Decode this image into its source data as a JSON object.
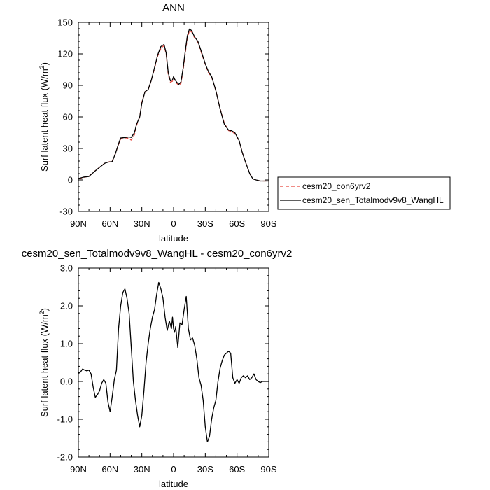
{
  "chart_data": [
    {
      "type": "line",
      "title": "ANN",
      "xlabel": "latitude",
      "ylabel": "Surf latent heat flux",
      "ylabel_unit": "(W/m2)",
      "x_tick_labels": [
        "90N",
        "60N",
        "30N",
        "0",
        "30S",
        "60S",
        "90S"
      ],
      "x_ticks": [
        90,
        60,
        30,
        0,
        -30,
        -60,
        -90
      ],
      "xlim": [
        90,
        -90
      ],
      "ylim": [
        -30,
        150
      ],
      "y_ticks": [
        -30,
        0,
        30,
        60,
        90,
        120,
        150
      ],
      "y_tick_labels": [
        "-30",
        "0",
        "30",
        "60",
        "90",
        "120",
        "150"
      ],
      "grid": false,
      "legend_position": "right",
      "series": [
        {
          "name": "cesm20_con6yrv2",
          "color": "#e8483f",
          "dash": "dashed",
          "x": [
            90,
            85,
            80,
            75,
            70,
            65,
            62,
            58,
            55,
            52,
            50,
            47,
            44,
            42,
            40,
            37,
            35,
            32,
            30,
            27,
            24,
            21,
            18,
            15,
            12,
            9,
            7,
            5,
            3,
            1,
            0,
            -1,
            -3,
            -5,
            -7,
            -9,
            -11,
            -13,
            -15,
            -17,
            -20,
            -23,
            -26,
            -30,
            -33,
            -36,
            -40,
            -44,
            -48,
            -52,
            -55,
            -58,
            -62,
            -65,
            -68,
            -72,
            -75,
            -78,
            -82,
            -85,
            -88,
            -90
          ],
          "y": [
            1,
            2.5,
            3.5,
            8,
            12,
            16,
            17,
            18,
            25,
            34,
            39,
            40,
            40,
            39,
            38,
            43,
            52,
            60,
            74,
            84,
            86,
            95,
            106,
            118,
            125,
            128,
            120,
            100,
            93,
            94,
            97,
            95,
            92,
            90,
            92,
            104,
            120,
            135,
            142,
            141,
            135,
            131,
            122,
            110,
            102,
            98,
            85,
            68,
            54,
            47,
            46,
            44,
            37,
            26,
            17,
            6,
            1,
            0,
            -1,
            -1,
            -1,
            -1
          ]
        },
        {
          "name": "cesm20_sen_Totalmodv9v8_WangHL",
          "color": "#000000",
          "dash": "solid",
          "x": [
            90,
            85,
            80,
            75,
            70,
            65,
            62,
            58,
            55,
            52,
            50,
            47,
            44,
            42,
            40,
            37,
            35,
            32,
            30,
            27,
            24,
            21,
            18,
            15,
            12,
            9,
            7,
            5,
            3,
            1,
            0,
            -1,
            -3,
            -5,
            -7,
            -9,
            -11,
            -13,
            -15,
            -17,
            -20,
            -23,
            -26,
            -30,
            -33,
            -36,
            -40,
            -44,
            -48,
            -52,
            -55,
            -58,
            -62,
            -65,
            -68,
            -72,
            -75,
            -78,
            -82,
            -85,
            -88,
            -90
          ],
          "y": [
            1.3,
            2.7,
            3.3,
            7.8,
            12,
            15.9,
            16.9,
            17.5,
            25,
            34.5,
            40,
            40.3,
            40.7,
            41,
            40.5,
            45,
            53,
            60,
            73,
            84,
            86,
            95,
            107,
            119,
            127,
            129,
            121,
            102,
            94.3,
            95.3,
            98.4,
            96,
            93,
            91,
            93.4,
            106,
            122,
            137,
            143.7,
            142.2,
            136,
            132,
            123,
            110.5,
            103,
            98.5,
            85,
            67.6,
            53,
            47.5,
            46.8,
            45,
            37.5,
            26,
            17.1,
            6,
            1,
            0,
            -1,
            -1,
            -1,
            -1
          ]
        }
      ]
    },
    {
      "type": "line",
      "title": "cesm20_sen_Totalmodv9v8_WangHL - cesm20_con6yrv2",
      "xlabel": "latitude",
      "ylabel": "Surf latent heat flux",
      "ylabel_unit": "(W/m2)",
      "x_tick_labels": [
        "90N",
        "60N",
        "30N",
        "0",
        "30S",
        "60S",
        "90S"
      ],
      "x_ticks": [
        90,
        60,
        30,
        0,
        -30,
        -60,
        -90
      ],
      "xlim": [
        90,
        -90
      ],
      "ylim": [
        -2.0,
        3.0
      ],
      "y_ticks": [
        -2,
        -1,
        0,
        1,
        2,
        3
      ],
      "y_tick_labels": [
        "-2.0",
        "-1.0",
        "0.0",
        "1.0",
        "2.0",
        "3.0"
      ],
      "grid": false,
      "series": [
        {
          "name": "",
          "color": "#000000",
          "dash": "solid",
          "x": [
            90,
            88,
            86,
            84,
            82,
            80,
            78,
            76,
            74,
            72,
            70,
            68,
            66,
            64,
            62,
            60,
            58,
            56,
            54,
            52,
            50,
            48,
            46,
            44,
            42,
            40,
            38,
            36,
            34,
            32,
            30,
            28,
            26,
            24,
            22,
            20,
            18,
            16,
            14,
            12,
            10,
            8,
            6,
            4,
            2,
            1,
            0,
            -1,
            -2,
            -4,
            -6,
            -8,
            -10,
            -12,
            -14,
            -16,
            -18,
            -20,
            -22,
            -24,
            -26,
            -28,
            -30,
            -32,
            -34,
            -36,
            -38,
            -40,
            -42,
            -44,
            -46,
            -48,
            -50,
            -52,
            -54,
            -56,
            -58,
            -60,
            -62,
            -64,
            -66,
            -68,
            -70,
            -72,
            -74,
            -76,
            -78,
            -80,
            -82,
            -84,
            -86,
            -88,
            -90
          ],
          "y": [
            0.22,
            0.25,
            0.33,
            0.3,
            0.28,
            0.3,
            0.2,
            -0.15,
            -0.42,
            -0.35,
            -0.25,
            -0.05,
            0.05,
            -0.05,
            -0.55,
            -0.8,
            -0.4,
            0.05,
            0.3,
            1.4,
            2.0,
            2.35,
            2.45,
            2.2,
            1.8,
            0.9,
            0.0,
            -0.5,
            -0.9,
            -1.2,
            -0.9,
            -0.25,
            0.5,
            1.0,
            1.4,
            1.7,
            1.9,
            2.3,
            2.62,
            2.45,
            2.2,
            1.7,
            1.35,
            1.6,
            1.4,
            1.7,
            1.4,
            1.3,
            1.45,
            0.9,
            1.55,
            1.5,
            1.9,
            2.25,
            1.4,
            1.1,
            1.15,
            0.95,
            0.6,
            0.1,
            -0.1,
            -0.5,
            -1.2,
            -1.6,
            -1.45,
            -1.0,
            -0.7,
            -0.5,
            0.0,
            0.35,
            0.55,
            0.7,
            0.75,
            0.8,
            0.75,
            0.1,
            -0.05,
            0.05,
            -0.05,
            0.1,
            0.15,
            0.1,
            0.15,
            0.05,
            0.1,
            0.2,
            0.05,
            0.0,
            -0.03,
            0.0,
            0.0,
            0.0,
            0.0
          ]
        }
      ]
    }
  ]
}
